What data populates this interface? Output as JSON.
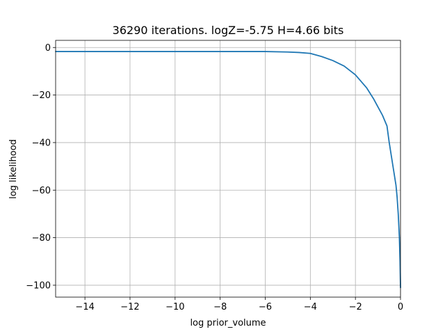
{
  "chart_data": {
    "type": "line",
    "title": "36290 iterations. logZ=-5.75 H=4.66 bits",
    "xlabel": "log prior_volume",
    "ylabel": "log likelihood",
    "xlim": [
      -15.3,
      0.0
    ],
    "ylim": [
      -105,
      3
    ],
    "grid": true,
    "x_ticks": [
      -14,
      -12,
      -10,
      -8,
      -6,
      -4,
      -2,
      0
    ],
    "y_ticks": [
      0,
      -20,
      -40,
      -60,
      -80,
      -100
    ],
    "x_tick_labels": [
      "−14",
      "−12",
      "−10",
      "−8",
      "−6",
      "−4",
      "−2",
      "0"
    ],
    "y_tick_labels": [
      "0",
      "−20",
      "−40",
      "−60",
      "−80",
      "−100"
    ],
    "series": [
      {
        "color": "#1f77b4",
        "x": [
          -15.3,
          -14,
          -12,
          -10,
          -8,
          -6,
          -5,
          -4.5,
          -4.0,
          -3.5,
          -3.0,
          -2.5,
          -2.0,
          -1.5,
          -1.2,
          -1.0,
          -0.8,
          -0.6,
          -0.5,
          -0.4,
          -0.3,
          -0.2,
          -0.15,
          -0.1,
          -0.05,
          -0.02,
          0.0
        ],
        "y": [
          -1.7,
          -1.7,
          -1.7,
          -1.7,
          -1.7,
          -1.7,
          -1.9,
          -2.1,
          -2.5,
          -3.8,
          -5.5,
          -7.8,
          -11.5,
          -17.0,
          -21.5,
          -25.0,
          -28.5,
          -33.0,
          -40.0,
          -46.0,
          -52.0,
          -58.0,
          -63.0,
          -70.0,
          -80.0,
          -90.0,
          -101.0
        ]
      }
    ]
  }
}
